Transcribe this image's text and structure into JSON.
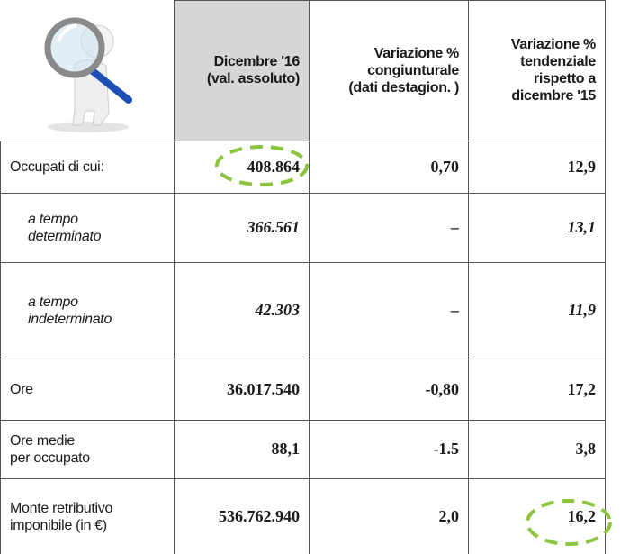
{
  "table": {
    "header": [
      [
        "Dicembre '16",
        "(val. assoluto)"
      ],
      [
        "Variazione %",
        "congiunturale",
        "(dati destagion. )"
      ],
      [
        "Variazione %",
        "tendenziale",
        "rispetto a",
        "dicembre '15"
      ]
    ],
    "rows": [
      {
        "label": [
          "Occupati di cui:"
        ],
        "values": [
          "408.864",
          "0,70",
          "12,9"
        ]
      },
      {
        "label": [
          "a tempo",
          "determinato"
        ],
        "values": [
          "366.561",
          "–",
          "13,1"
        ]
      },
      {
        "label": [
          "a tempo",
          "indeterminato"
        ],
        "values": [
          "42.303",
          "–",
          "11,9"
        ]
      },
      {
        "label": [
          "Ore"
        ],
        "values": [
          "36.017.540",
          "-0,80",
          "17,2"
        ]
      },
      {
        "label": [
          "Ore medie",
          "per occupato"
        ],
        "values": [
          "88,1",
          "-1.5",
          "3,8"
        ]
      },
      {
        "label": [
          "Monte retributivo",
          "imponibile (in €)"
        ],
        "values": [
          "536.762.940",
          "2,0",
          "16,2"
        ]
      }
    ]
  }
}
